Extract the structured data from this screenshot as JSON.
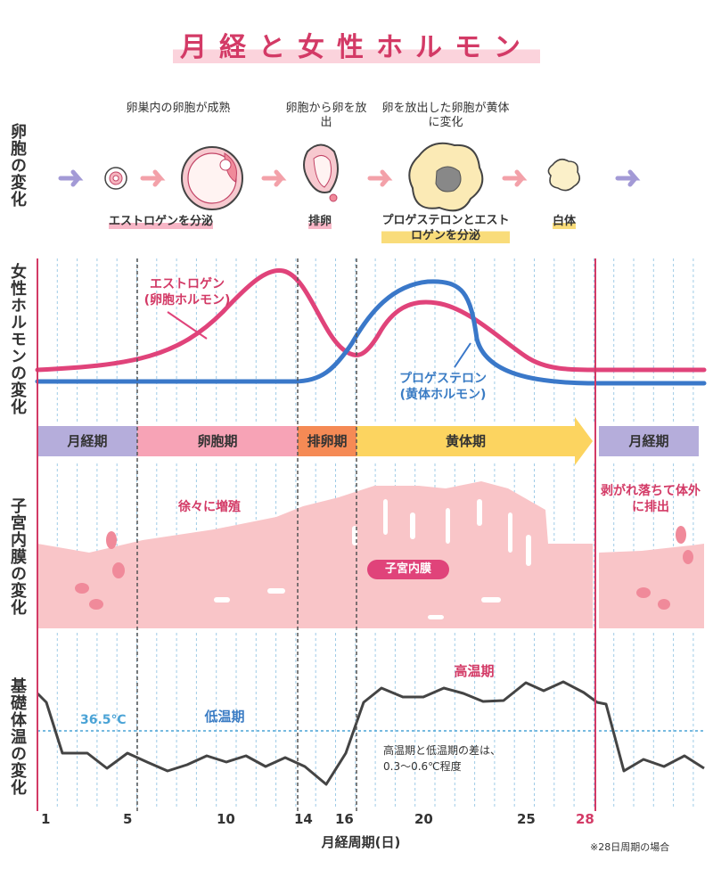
{
  "title": "月経と女性ホルモン",
  "row_labels": {
    "ovum": "卵胞の変化",
    "hormone": "女性ホルモンの変化",
    "uterus": "子宮内膜の変化",
    "temp": "基礎体温の変化"
  },
  "ovum_stages": {
    "top_1": "卵巣内の卵胞が成熟",
    "top_2": "卵胞から卵を放出",
    "top_3": "卵を放出した卵胞が黄体に変化",
    "bottom_1": "エストロゲンを分泌",
    "bottom_2": "排卵",
    "bottom_3": "プロゲステロンとエストロゲンを分泌",
    "bottom_4": "白体"
  },
  "hormones": {
    "estrogen": "エストロゲン",
    "estrogen_sub": "(卵胞ホルモン)",
    "progesterone": "プロゲステロン",
    "progesterone_sub": "(黄体ホルモン)",
    "estrogen_color": "#e0437a",
    "progesterone_color": "#3a78c9"
  },
  "phases": {
    "menstrual": "月経期",
    "follicular": "卵胞期",
    "ovulation": "排卵期",
    "luteal": "黄体期",
    "menstrual2": "月経期"
  },
  "uterus": {
    "grow": "徐々に増殖",
    "shed": "剥がれ落ちて体外に排出",
    "label": "子宮内膜"
  },
  "temp": {
    "baseline": "36.5℃",
    "low": "低温期",
    "high": "高温期",
    "note_1": "高温期と低温期の差は、",
    "note_2": "0.3〜0.6℃程度"
  },
  "axis": {
    "ticks": [
      "1",
      "5",
      "10",
      "14",
      "16",
      "20",
      "25",
      "28"
    ],
    "title": "月経周期(日)",
    "footnote": "※28日周期の場合"
  }
}
